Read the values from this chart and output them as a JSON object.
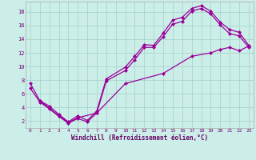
{
  "xlabel": "Windchill (Refroidissement éolien,°C)",
  "background_color": "#cceee8",
  "grid_color": "#aad4ce",
  "line_color": "#990099",
  "xlim": [
    -0.5,
    23.5
  ],
  "ylim": [
    1,
    19.5
  ],
  "xticks": [
    0,
    1,
    2,
    3,
    4,
    5,
    6,
    7,
    8,
    9,
    10,
    11,
    12,
    13,
    14,
    15,
    16,
    17,
    18,
    19,
    20,
    21,
    22,
    23
  ],
  "yticks": [
    2,
    4,
    6,
    8,
    10,
    12,
    14,
    16,
    18
  ],
  "curve1_x": [
    0,
    1,
    2,
    3,
    4,
    5,
    6,
    7,
    8,
    10,
    11,
    12,
    13,
    14,
    15,
    16,
    17,
    18,
    19,
    20,
    21,
    22,
    23
  ],
  "curve1_y": [
    7.5,
    5.0,
    4.2,
    3.0,
    1.9,
    2.8,
    2.1,
    3.5,
    8.2,
    9.9,
    11.5,
    13.2,
    13.1,
    14.9,
    16.8,
    17.2,
    18.5,
    18.9,
    18.1,
    16.5,
    15.4,
    15.0,
    13.1
  ],
  "curve2_x": [
    1,
    2,
    3,
    4,
    5,
    7,
    10,
    14,
    17,
    19,
    20,
    21,
    22,
    23
  ],
  "curve2_y": [
    5.0,
    3.9,
    2.8,
    1.8,
    2.5,
    3.2,
    7.5,
    9.0,
    11.5,
    12.0,
    12.5,
    12.8,
    12.3,
    13.0
  ],
  "curve3_x": [
    0,
    1,
    2,
    3,
    4,
    5,
    6,
    7,
    8,
    10,
    11,
    12,
    13,
    14,
    15,
    16,
    17,
    18,
    19,
    20,
    21,
    22,
    23
  ],
  "curve3_y": [
    6.8,
    4.8,
    3.8,
    2.7,
    1.7,
    2.4,
    1.9,
    3.2,
    7.9,
    9.4,
    11.0,
    12.8,
    12.8,
    14.4,
    16.2,
    16.6,
    18.1,
    18.5,
    17.7,
    16.1,
    14.8,
    14.5,
    12.8
  ]
}
